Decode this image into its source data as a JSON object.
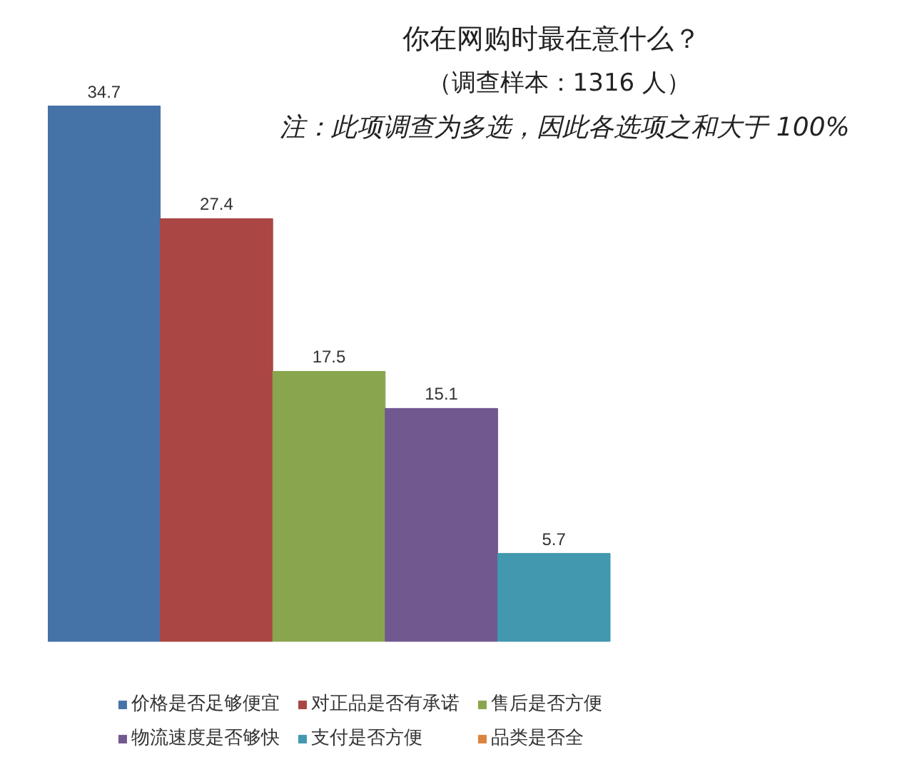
{
  "chart_data": {
    "type": "bar",
    "title": "你在网购时最在意什么？",
    "subtitle": "（调查样本：1316 人）",
    "annotations": [
      "注：此项调查为多选，因此各选项之和大于 100%"
    ],
    "categories": [
      null
    ],
    "series": [
      {
        "name": "价格是否足够便宜",
        "color": "#4572a7",
        "values": [
          34.7
        ]
      },
      {
        "name": "对正品是否有承诺",
        "color": "#aa4643",
        "values": [
          27.4
        ]
      },
      {
        "name": "售后是否方便",
        "color": "#89a54e",
        "values": [
          17.5
        ]
      },
      {
        "name": "物流速度是否够快",
        "color": "#71588f",
        "values": [
          15.1
        ]
      },
      {
        "name": "支付是否方便",
        "color": "#4198af",
        "values": [
          5.7
        ]
      },
      {
        "name": "品类是否全",
        "color": "#db843d",
        "values": [
          null
        ]
      }
    ],
    "data_labels": true,
    "legend": "bottom",
    "grid": false,
    "tick_labels": false
  }
}
